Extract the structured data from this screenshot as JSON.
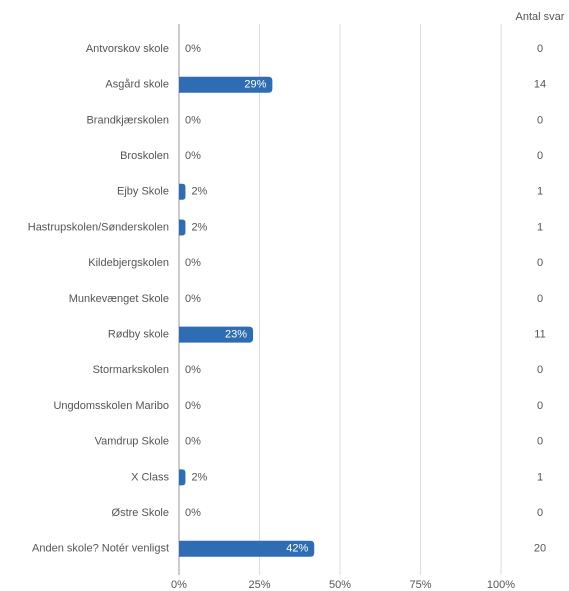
{
  "chart_data": {
    "type": "hbar",
    "categories": [
      "Antvorskov skole",
      "Asgård skole",
      "Brandkjærskolen",
      "Broskolen",
      "Ejby Skole",
      "Hastrupskolen/Sønderskolen",
      "Kildebjergskolen",
      "Munkevænget Skole",
      "Rødby skole",
      "Stormarkskolen",
      "Ungdomsskolen Maribo",
      "Vamdrup Skole",
      "X Class",
      "Østre Skole",
      "Anden skole? Notér venligst"
    ],
    "values": [
      0,
      29,
      0,
      0,
      2,
      2,
      0,
      0,
      23,
      0,
      0,
      0,
      2,
      0,
      42
    ],
    "value_labels": [
      "0%",
      "29%",
      "0%",
      "0%",
      "2%",
      "2%",
      "0%",
      "0%",
      "23%",
      "0%",
      "0%",
      "0%",
      "2%",
      "0%",
      "42%"
    ],
    "count_header": "Antal svar",
    "counts": [
      0,
      14,
      0,
      0,
      1,
      1,
      0,
      0,
      11,
      0,
      0,
      0,
      1,
      0,
      20
    ],
    "color": "#2e6db4",
    "xlim": [
      0,
      100
    ],
    "xticks": [
      {
        "value": 0,
        "label": "0%"
      },
      {
        "value": 25,
        "label": "25%"
      },
      {
        "value": 50,
        "label": "50%"
      },
      {
        "value": 75,
        "label": "75%"
      },
      {
        "value": 100,
        "label": "100%"
      }
    ],
    "grid": true
  }
}
